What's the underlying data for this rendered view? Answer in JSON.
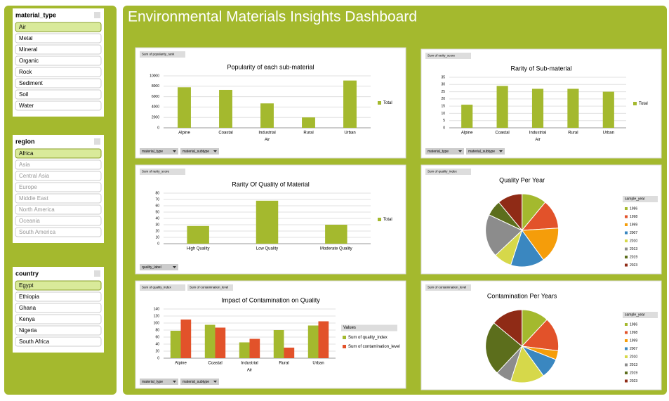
{
  "title": "Environmental Materials Insights Dashboard",
  "slicers": [
    {
      "name": "material_type",
      "items": [
        "Air",
        "Metal",
        "Mineral",
        "Organic",
        "Rock",
        "Sediment",
        "Soil",
        "Water"
      ],
      "selected": 0,
      "dimmed": false
    },
    {
      "name": "region",
      "items": [
        "Africa",
        "Asia",
        "Central Asia",
        "Europe",
        "Middle East",
        "North America",
        "Oceania",
        "South America"
      ],
      "selected": 0,
      "dimmed": true
    },
    {
      "name": "country",
      "items": [
        "Egypt",
        "Ethiopia",
        "Ghana",
        "Kenya",
        "Nigeria",
        "South Africa"
      ],
      "selected": 0,
      "dimmed": false
    }
  ],
  "chart_data": [
    {
      "type": "bar",
      "title": "Popularity of each sub-material",
      "buttons": [
        "Sum of popularity_rank"
      ],
      "filters": [
        "material_type",
        "material_subtype"
      ],
      "x_label": "Air",
      "categories": [
        "Alpine",
        "Coastal",
        "Industrial",
        "Rural",
        "Urban"
      ],
      "series": [
        {
          "name": "Total",
          "color": "#a4b92e",
          "values": [
            7800,
            7300,
            4700,
            2000,
            9100
          ]
        }
      ],
      "ylim": [
        0,
        10000
      ],
      "yticks": [
        0,
        2000,
        4000,
        6000,
        8000,
        10000
      ]
    },
    {
      "type": "bar",
      "title": "Rarity of Sub-material",
      "buttons": [
        "Sum of rarity_score"
      ],
      "filters": [
        "material_type",
        "material_subtype"
      ],
      "x_label": "Air",
      "categories": [
        "Alpine",
        "Coastal",
        "Industrial",
        "Rural",
        "Urban"
      ],
      "series": [
        {
          "name": "Total",
          "color": "#a4b92e",
          "values": [
            16,
            29,
            27,
            27,
            25
          ]
        }
      ],
      "ylim": [
        0,
        35
      ],
      "yticks": [
        0,
        5,
        10,
        15,
        20,
        25,
        30,
        35
      ]
    },
    {
      "type": "bar",
      "title": "Rarity Of Quality of Material",
      "buttons": [
        "Sum of rarity_score"
      ],
      "filters": [
        "quality_label"
      ],
      "categories": [
        "High Quality",
        "Low Quality",
        "Moderate Quality"
      ],
      "series": [
        {
          "name": "Total",
          "color": "#a4b92e",
          "values": [
            28,
            68,
            30
          ]
        }
      ],
      "ylim": [
        0,
        80
      ],
      "yticks": [
        0,
        10,
        20,
        30,
        40,
        50,
        60,
        70,
        80
      ]
    },
    {
      "type": "pie",
      "title": "Quality Per Year",
      "buttons": [
        "Sum of quality_index"
      ],
      "legend_title": "sample_year",
      "categories": [
        "1986",
        "1998",
        "1999",
        "2007",
        "2010",
        "2013",
        "2019",
        "2023"
      ],
      "colors": [
        "#a4b92e",
        "#e2522a",
        "#f59d0a",
        "#3a87c0",
        "#d6d84a",
        "#8c8c8c",
        "#5c6e1c",
        "#8f2b16"
      ],
      "values": [
        11,
        13,
        16,
        15,
        8,
        19,
        7,
        11
      ]
    },
    {
      "type": "bar",
      "title": "Impact of Contamination on Quality",
      "buttons": [
        "Sum of quality_index",
        "Sum of contamination_level"
      ],
      "filters": [
        "material_type",
        "material_subtype"
      ],
      "x_label": "Air",
      "legend_title": "Values",
      "categories": [
        "Alpine",
        "Coastal",
        "Industrial",
        "Rural",
        "Urban"
      ],
      "series": [
        {
          "name": "Sum of quality_index",
          "color": "#a4b92e",
          "values": [
            78,
            95,
            45,
            80,
            93
          ]
        },
        {
          "name": "Sum of contamination_level",
          "color": "#e2522a",
          "values": [
            110,
            87,
            55,
            30,
            105
          ]
        }
      ],
      "ylim": [
        0,
        140
      ],
      "yticks": [
        0,
        20,
        40,
        60,
        80,
        100,
        120,
        140
      ]
    },
    {
      "type": "pie",
      "title": "Contamination Per Years",
      "buttons": [
        "Sum of contamination_level"
      ],
      "legend_title": "sample_year",
      "categories": [
        "1986",
        "1998",
        "1999",
        "2007",
        "2010",
        "2013",
        "2019",
        "2023"
      ],
      "colors": [
        "#a4b92e",
        "#e2522a",
        "#f59d0a",
        "#3a87c0",
        "#d6d84a",
        "#8c8c8c",
        "#5c6e1c",
        "#8f2b16"
      ],
      "values": [
        12,
        15,
        4,
        9,
        15,
        7,
        24,
        14
      ]
    }
  ]
}
